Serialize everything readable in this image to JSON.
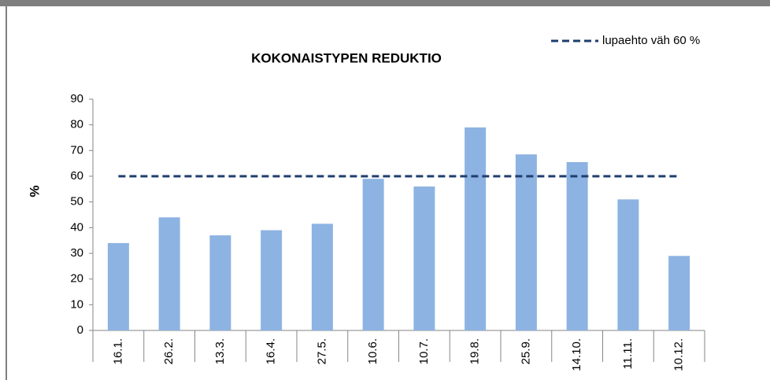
{
  "chart_data": {
    "type": "bar",
    "title": "KOKONAISTYPEN REDUKTIO",
    "y_label": "%",
    "categories": [
      "16.1.",
      "26.2.",
      "13.3.",
      "16.4.",
      "27.5.",
      "10.6.",
      "10.7.",
      "19.8.",
      "25.9.",
      "14.10.",
      "11.11.",
      "10.12."
    ],
    "series": [
      {
        "color": "#8db3e2",
        "values": [
          34,
          44,
          37,
          39,
          41.5,
          59,
          56,
          79,
          68.5,
          65.5,
          51,
          29
        ]
      },
      {
        "name": "lupaehto väh 60 %",
        "type": "line",
        "color": "#1f3e6e",
        "values": [
          60,
          60,
          60,
          60,
          60,
          60,
          60,
          60,
          60,
          60,
          60,
          60
        ]
      }
    ],
    "ylim": [
      0,
      90
    ],
    "yticks": [
      0,
      10,
      20,
      30,
      40,
      50,
      60,
      70,
      80,
      90
    ],
    "grid": false,
    "legend": "top-right"
  }
}
